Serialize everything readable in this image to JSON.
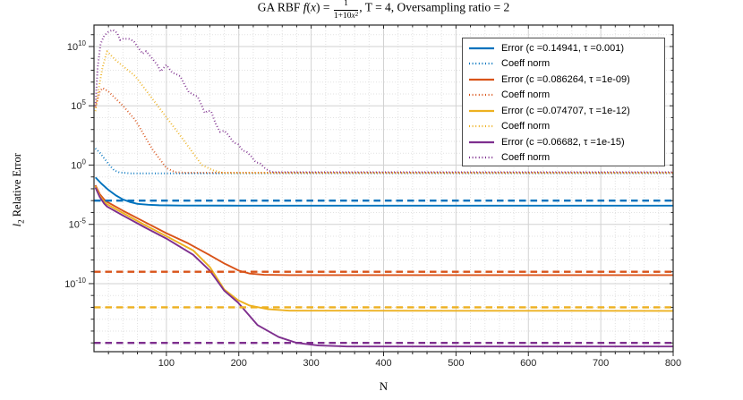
{
  "figure": {
    "title": {
      "prefix": "GA RBF ",
      "f_var": "f",
      "paren_open": "(",
      "x_var": "x",
      "paren_close": ") = ",
      "frac_num": "1",
      "frac_den_pre": "1+10",
      "frac_den_var": "x",
      "frac_den_sup": "2",
      "suffix": ", T = 4, Oversampling ratio = 2"
    },
    "xlabel": "N",
    "ylabel": {
      "italic": "l",
      "sub": "2",
      "rest": " Relative Error"
    }
  },
  "legend": {
    "entries": [
      {
        "label": "Error (c =0.14941, τ =0.001)",
        "color": "#0072BD",
        "style": "solid"
      },
      {
        "label": "Coeff norm",
        "color": "#0072BD",
        "style": "dotted"
      },
      {
        "label": "Error (c =0.086264, τ =1e-09)",
        "color": "#D95319",
        "style": "solid"
      },
      {
        "label": "Coeff norm",
        "color": "#D95319",
        "style": "dotted"
      },
      {
        "label": "Error (c =0.074707, τ =1e-12)",
        "color": "#EDB120",
        "style": "solid"
      },
      {
        "label": "Coeff norm",
        "color": "#EDB120",
        "style": "dotted"
      },
      {
        "label": "Error (c =0.06682, τ =1e-15)",
        "color": "#7E2F8E",
        "style": "solid"
      },
      {
        "label": "Coeff norm",
        "color": "#7E2F8E",
        "style": "dotted"
      }
    ]
  },
  "colors": {
    "blue": "#0072BD",
    "orange": "#D95319",
    "yellow": "#EDB120",
    "purple": "#7E2F8E",
    "axis": "#262626",
    "grid_major": "#d2d2d2",
    "grid_minor": "#e2e2e2",
    "tick_label": "#262626"
  },
  "chart_data": {
    "type": "line",
    "title": "GA RBF f(x) = 1/(1+10x^2), T = 4, Oversampling ratio = 2",
    "xlabel": "N",
    "ylabel": "l2 Relative Error",
    "x_axis": "linear",
    "y_axis": "log10",
    "xlim": [
      0,
      800
    ],
    "ylog_lim": [
      -15.74,
      11.81
    ],
    "x_ticks": [
      100,
      200,
      300,
      400,
      500,
      600,
      700,
      800
    ],
    "x_minor_step": 20,
    "y_ticks": [
      {
        "base": "10",
        "exp": "10"
      },
      {
        "base": "10",
        "exp": "5"
      },
      {
        "base": "10",
        "exp": "0"
      },
      {
        "base": "10",
        "exp": "-5"
      },
      {
        "base": "10",
        "exp": "-10"
      }
    ],
    "y_tick_exps": [
      10,
      5,
      0,
      -5,
      -10
    ],
    "grid": {
      "major": true,
      "minor": true
    },
    "legend_position": "northeast",
    "note": "Each series point is [N, log10(value)]",
    "series": [
      {
        "id": "error-c1",
        "name": "Error (c =0.14941, tau =0.001)",
        "color": "#0072BD",
        "style": "solid",
        "width": 1.9,
        "points": [
          [
            2,
            -1.04
          ],
          [
            10,
            -1.55
          ],
          [
            20,
            -2.1
          ],
          [
            30,
            -2.55
          ],
          [
            40,
            -2.9
          ],
          [
            50,
            -3.12
          ],
          [
            60,
            -3.27
          ],
          [
            75,
            -3.35
          ],
          [
            90,
            -3.39
          ],
          [
            120,
            -3.41
          ],
          [
            200,
            -3.42
          ],
          [
            800,
            -3.42
          ]
        ]
      },
      {
        "id": "coeff-c1",
        "name": "Coeff norm (c =0.14941)",
        "color": "#0072BD",
        "style": "dotted",
        "width": 2.0,
        "points": [
          [
            2,
            1.4
          ],
          [
            8,
            1.05
          ],
          [
            15,
            0.5
          ],
          [
            22,
            -0.05
          ],
          [
            28,
            -0.45
          ],
          [
            35,
            -0.62
          ],
          [
            50,
            -0.7
          ],
          [
            800,
            -0.7
          ]
        ]
      },
      {
        "id": "error-c2",
        "name": "Error (c =0.086264, tau =1e-09)",
        "color": "#D95319",
        "style": "solid",
        "width": 1.9,
        "points": [
          [
            2,
            -1.7
          ],
          [
            8,
            -2.45
          ],
          [
            14,
            -2.9
          ],
          [
            18,
            -3.1
          ],
          [
            40,
            -3.85
          ],
          [
            70,
            -4.8
          ],
          [
            100,
            -5.75
          ],
          [
            130,
            -6.6
          ],
          [
            160,
            -7.6
          ],
          [
            180,
            -8.3
          ],
          [
            200,
            -8.9
          ],
          [
            215,
            -9.15
          ],
          [
            235,
            -9.25
          ],
          [
            270,
            -9.28
          ],
          [
            800,
            -9.28
          ]
        ]
      },
      {
        "id": "coeff-c2",
        "name": "Coeff norm (c =0.086264)",
        "color": "#D95319",
        "style": "dotted",
        "width": 2.0,
        "points": [
          [
            2,
            4.9
          ],
          [
            8,
            6.2
          ],
          [
            12,
            6.5
          ],
          [
            20,
            6.2
          ],
          [
            40,
            5.0
          ],
          [
            57,
            3.8
          ],
          [
            81,
            1.3
          ],
          [
            100,
            -0.25
          ],
          [
            112,
            -0.6
          ],
          [
            125,
            -0.64
          ],
          [
            800,
            -0.64
          ]
        ]
      },
      {
        "id": "error-c3",
        "name": "Error (c =0.074707, tau =1e-12)",
        "color": "#EDB120",
        "style": "solid",
        "width": 1.9,
        "points": [
          [
            2,
            -1.8
          ],
          [
            8,
            -2.6
          ],
          [
            14,
            -3.1
          ],
          [
            18,
            -3.3
          ],
          [
            40,
            -4.05
          ],
          [
            70,
            -5.05
          ],
          [
            100,
            -6.0
          ],
          [
            137,
            -7.2
          ],
          [
            160,
            -8.6
          ],
          [
            180,
            -10.5
          ],
          [
            199,
            -11.4
          ],
          [
            215,
            -11.85
          ],
          [
            240,
            -12.15
          ],
          [
            270,
            -12.28
          ],
          [
            800,
            -12.3
          ]
        ]
      },
      {
        "id": "coeff-c3",
        "name": "Coeff norm (c =0.074707)",
        "color": "#EDB120",
        "style": "dotted",
        "width": 2.0,
        "points": [
          [
            2,
            4.55
          ],
          [
            7,
            6.6
          ],
          [
            12,
            8.3
          ],
          [
            18,
            9.6
          ],
          [
            30,
            8.85
          ],
          [
            57,
            7.5
          ],
          [
            88,
            5.0
          ],
          [
            119,
            2.5
          ],
          [
            149,
            0.0
          ],
          [
            165,
            -0.45
          ],
          [
            178,
            -0.66
          ],
          [
            800,
            -0.66
          ]
        ]
      },
      {
        "id": "error-c4",
        "name": "Error (c =0.06682, tau =1e-15)",
        "color": "#7E2F8E",
        "style": "solid",
        "width": 1.9,
        "points": [
          [
            2,
            -1.9
          ],
          [
            8,
            -2.7
          ],
          [
            14,
            -3.25
          ],
          [
            18,
            -3.5
          ],
          [
            40,
            -4.25
          ],
          [
            70,
            -5.25
          ],
          [
            100,
            -6.2
          ],
          [
            137,
            -7.56
          ],
          [
            160,
            -8.9
          ],
          [
            180,
            -10.6
          ],
          [
            199,
            -11.6
          ],
          [
            226,
            -13.5
          ],
          [
            255,
            -14.5
          ],
          [
            280,
            -15.0
          ],
          [
            310,
            -15.22
          ],
          [
            350,
            -15.3
          ],
          [
            800,
            -15.3
          ]
        ]
      },
      {
        "id": "coeff-c4",
        "name": "Coeff norm (c =0.06682)",
        "color": "#7E2F8E",
        "style": "dotted",
        "width": 2.0,
        "points": [
          [
            2,
            5.0
          ],
          [
            5,
            8.2
          ],
          [
            9,
            10.2
          ],
          [
            14,
            10.9
          ],
          [
            20,
            11.25
          ],
          [
            26,
            11.4
          ],
          [
            32,
            11.15
          ],
          [
            36,
            10.55
          ],
          [
            40,
            10.65
          ],
          [
            48,
            10.65
          ],
          [
            55,
            10.45
          ],
          [
            61,
            9.9
          ],
          [
            67,
            9.4
          ],
          [
            72,
            9.6
          ],
          [
            79,
            9.1
          ],
          [
            88,
            8.4
          ],
          [
            92,
            7.9
          ],
          [
            100,
            8.45
          ],
          [
            108,
            7.8
          ],
          [
            114,
            7.65
          ],
          [
            119,
            7.5
          ],
          [
            125,
            6.8
          ],
          [
            131,
            6.15
          ],
          [
            137,
            5.95
          ],
          [
            143,
            5.78
          ],
          [
            149,
            5.0
          ],
          [
            153,
            4.4
          ],
          [
            158,
            4.6
          ],
          [
            162,
            4.5
          ],
          [
            168,
            3.5
          ],
          [
            174,
            2.8
          ],
          [
            180,
            2.9
          ],
          [
            186,
            2.5
          ],
          [
            193,
            1.9
          ],
          [
            199,
            1.75
          ],
          [
            205,
            1.25
          ],
          [
            211,
            1.1
          ],
          [
            217,
            0.75
          ],
          [
            223,
            0.26
          ],
          [
            230,
            0.12
          ],
          [
            236,
            -0.25
          ],
          [
            242,
            -0.5
          ],
          [
            248,
            -0.6
          ],
          [
            800,
            -0.6
          ]
        ]
      },
      {
        "id": "tau-c1",
        "name": "tau = 0.001",
        "color": "#0072BD",
        "style": "dashed",
        "width": 2.3,
        "points": [
          [
            0,
            -3
          ],
          [
            800,
            -3
          ]
        ]
      },
      {
        "id": "tau-c2",
        "name": "tau = 1e-09",
        "color": "#D95319",
        "style": "dashed",
        "width": 2.3,
        "points": [
          [
            0,
            -9
          ],
          [
            800,
            -9
          ]
        ]
      },
      {
        "id": "tau-c3",
        "name": "tau = 1e-12",
        "color": "#EDB120",
        "style": "dashed",
        "width": 2.3,
        "points": [
          [
            0,
            -12
          ],
          [
            800,
            -12
          ]
        ]
      },
      {
        "id": "tau-c4",
        "name": "tau = 1e-15",
        "color": "#7E2F8E",
        "style": "dashed",
        "width": 2.3,
        "points": [
          [
            0,
            -15
          ],
          [
            800,
            -15
          ]
        ]
      }
    ]
  }
}
